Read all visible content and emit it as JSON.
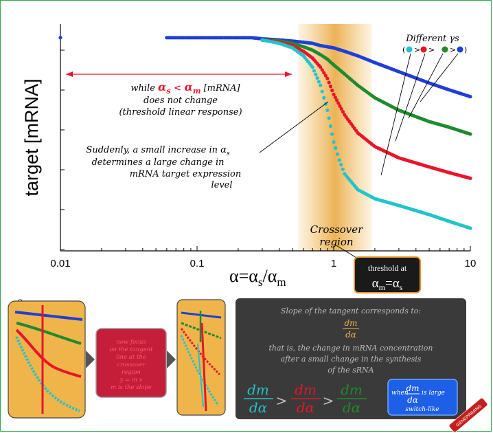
{
  "chart_data": {
    "type": "scatter",
    "xscale": "log",
    "xlim": [
      0.01,
      10
    ],
    "x_ticks": [
      "0.01",
      "0.1",
      "1",
      "10"
    ],
    "xlabel": "α=α",
    "xlabel_sub": "s",
    "xlabel_sep": "/α",
    "xlabel_sub2": "m",
    "ylabel": "target [mRNA]",
    "ylim": [
      0,
      1
    ],
    "y_tick_labels": false,
    "grid": false,
    "series_colors": [
      "#1e3fd8",
      "#1f8a2e",
      "#e8152a",
      "#21c4c9"
    ],
    "series": [
      {
        "x": [
          0.01,
          0.06,
          0.1,
          0.15,
          0.2,
          0.25,
          0.3,
          0.4,
          0.5,
          0.6,
          0.7,
          0.8,
          0.9,
          1.0,
          1.2,
          1.5,
          2.0,
          3.0,
          5.0,
          7.0,
          10.0
        ],
        "values": [
          0.94,
          0.94,
          0.94,
          0.94,
          0.94,
          0.94,
          0.935,
          0.93,
          0.925,
          0.92,
          0.915,
          0.905,
          0.9,
          0.895,
          0.88,
          0.86,
          0.83,
          0.79,
          0.74,
          0.71,
          0.68
        ]
      },
      {
        "x": [
          0.3,
          0.4,
          0.5,
          0.6,
          0.7,
          0.8,
          0.9,
          1.0,
          1.2,
          1.5,
          2.0,
          3.0,
          5.0,
          7.0,
          10.0
        ],
        "values": [
          0.93,
          0.925,
          0.915,
          0.9,
          0.885,
          0.865,
          0.845,
          0.82,
          0.78,
          0.73,
          0.675,
          0.62,
          0.57,
          0.545,
          0.515
        ]
      },
      {
        "x": [
          0.3,
          0.4,
          0.5,
          0.6,
          0.7,
          0.8,
          0.9,
          1.0,
          1.2,
          1.5,
          2.0,
          3.0,
          5.0,
          7.0,
          10.0
        ],
        "values": [
          0.93,
          0.92,
          0.905,
          0.88,
          0.85,
          0.81,
          0.76,
          0.69,
          0.6,
          0.52,
          0.46,
          0.41,
          0.37,
          0.345,
          0.32
        ]
      },
      {
        "x": [
          0.3,
          0.4,
          0.5,
          0.6,
          0.7,
          0.8,
          0.9,
          1.0,
          1.1,
          1.2,
          1.5,
          2.0,
          3.0,
          5.0,
          7.0,
          10.0
        ],
        "values": [
          0.93,
          0.915,
          0.895,
          0.86,
          0.81,
          0.73,
          0.62,
          0.48,
          0.4,
          0.34,
          0.27,
          0.23,
          0.2,
          0.16,
          0.13,
          0.1
        ]
      }
    ],
    "shaded_region_x": [
      0.55,
      1.9
    ],
    "annotations": {
      "while_prefix": "while ",
      "alpha_s": "α",
      "alpha_s_sub": "s",
      "less_than": " < ",
      "alpha_m": "α",
      "alpha_m_sub": "m",
      "while_suffix": " [mRNA]",
      "line2": "does not change",
      "line3": "(threshold linear response)",
      "sudden1": "Suddenly, a small increase in α",
      "sudden1_sub": "s",
      "sudden2": "determines a large change in",
      "sudden3": "mRNA target expression",
      "sudden4": "level",
      "crossover1": "Crossover",
      "crossover2": "region",
      "threshold1": "threshold at",
      "threshold2": "α",
      "threshold2_sub": "m",
      "threshold2_eq": "=α",
      "threshold2_sub2": "s",
      "different": "Different γs",
      "gamma_gt": ">",
      "gamma_dot_colors": [
        "#21c4c9",
        "#e8152a",
        "#1f8a2e",
        "#1e3fd8"
      ]
    }
  },
  "bottom": {
    "panel1_title1": "Crossover",
    "panel1_title2": "region",
    "box_lines": [
      "now focus",
      "on the tangent",
      "line at the",
      "crossover",
      "region",
      "y = m x",
      "m is the slope"
    ],
    "dark_title": "Slope of the tangent corresponds to:",
    "dm": "dm",
    "dalpha": "dα",
    "dark_line2": "that is, the change in mRNA concentration",
    "dark_line3": "after a small change in the synthesis",
    "dark_line4": "of the sRNA",
    "gt": ">",
    "when": "when",
    "is_large": "is large",
    "switch_like": "switch-like",
    "badge_text": "GENEPRIMING",
    "colors": {
      "panel_bg": "#f0b54a",
      "red_box": "#c41e3a",
      "dark_bg": "#3a3a3a",
      "cyan": "#21c4c9",
      "red": "#e8152a",
      "green": "#1f8a2e",
      "blue_box": "#1e5fe8"
    }
  }
}
